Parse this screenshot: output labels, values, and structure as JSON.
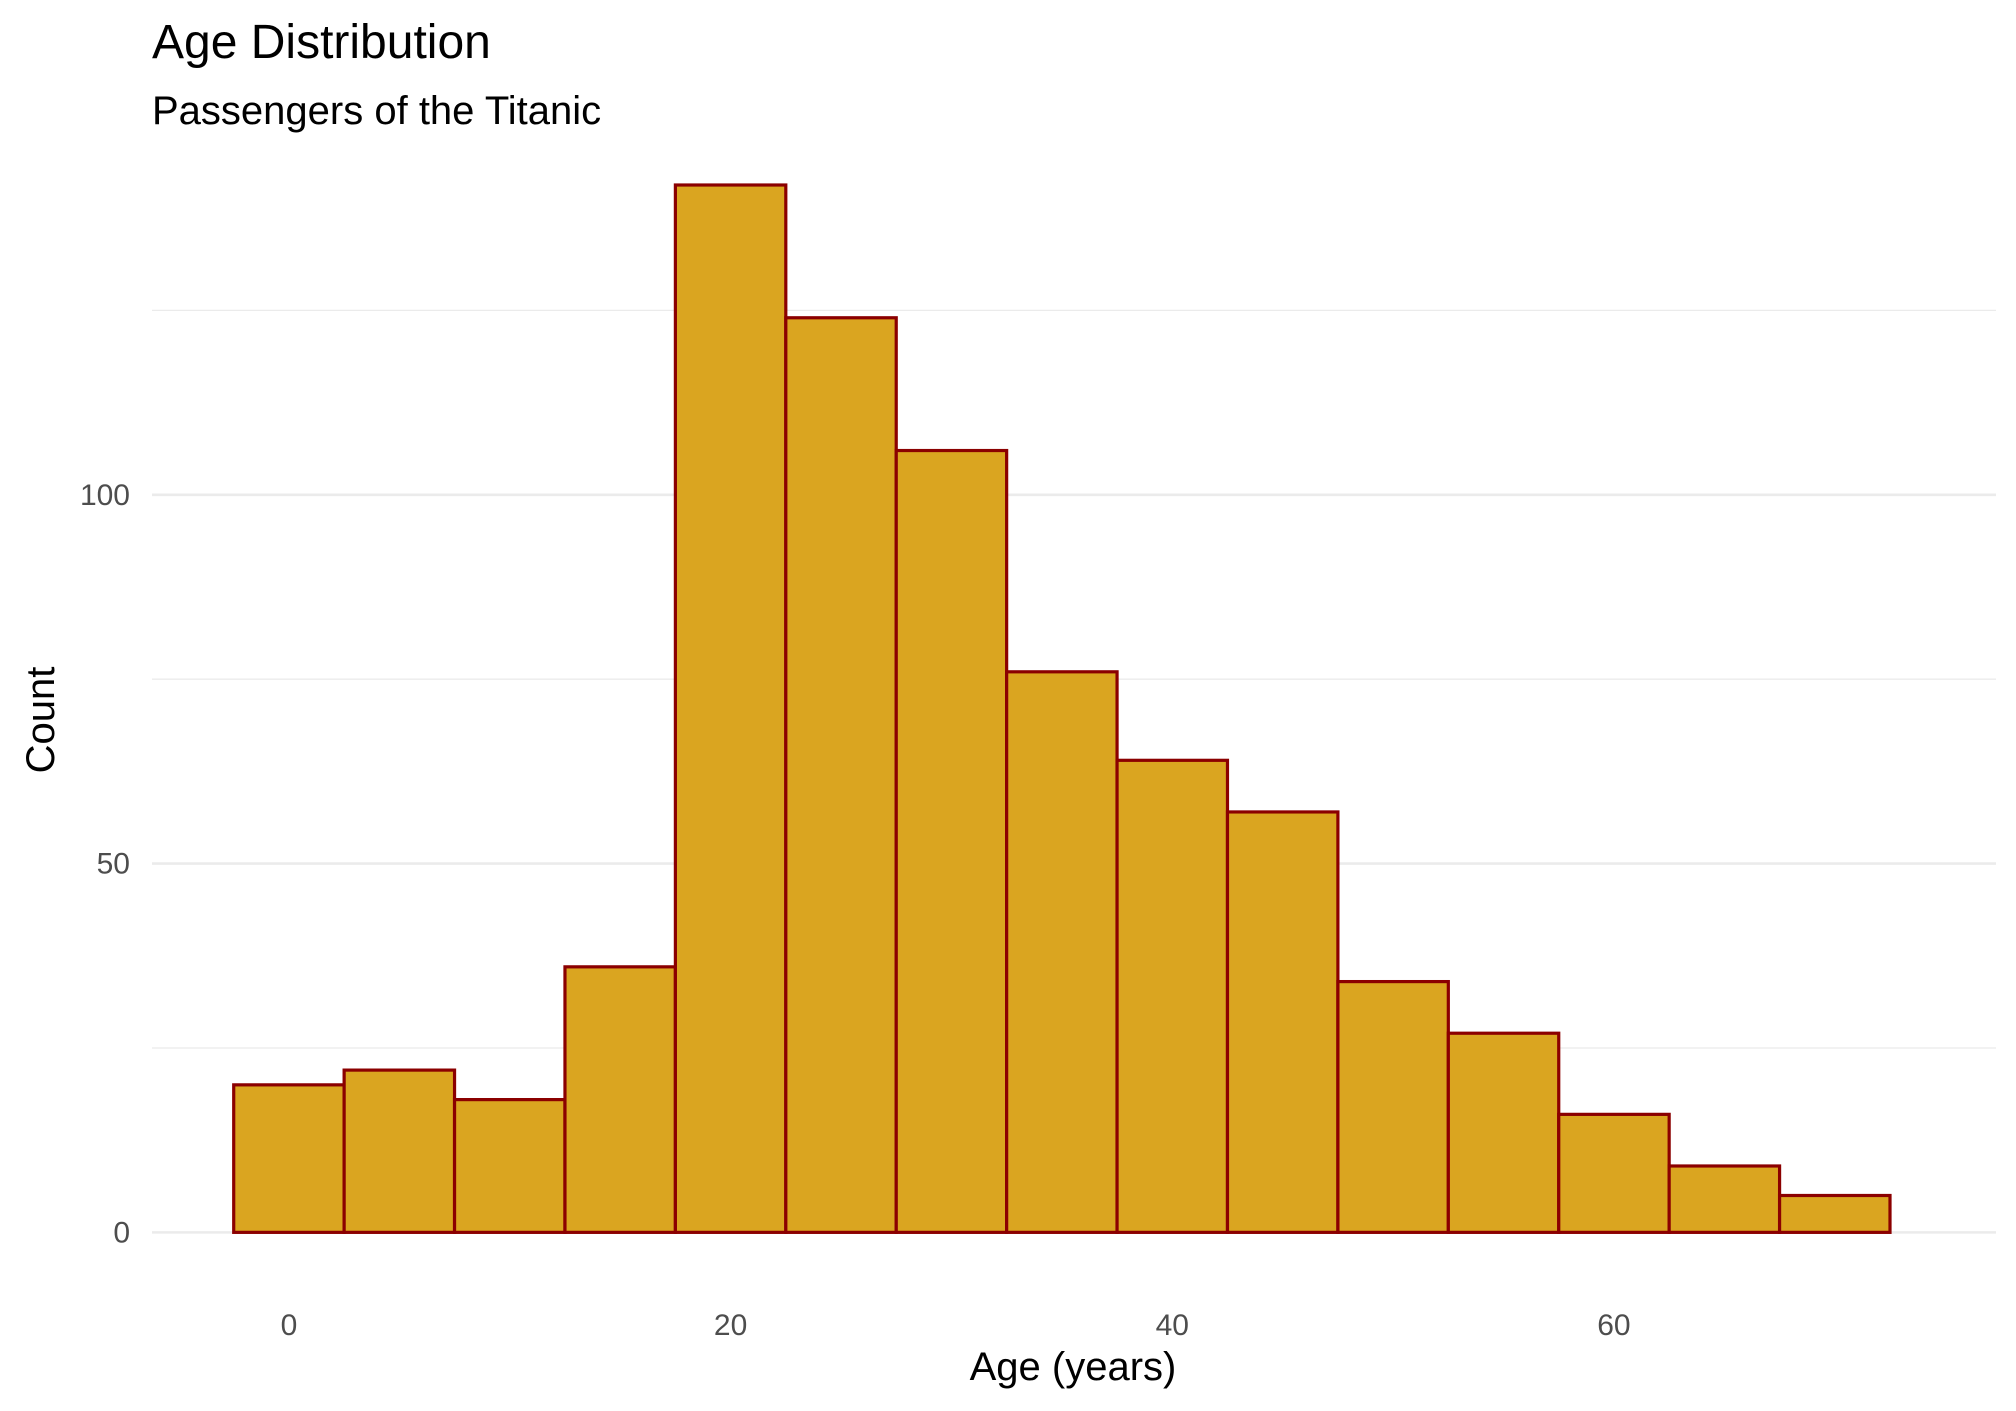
{
  "chart_data": {
    "type": "bar",
    "subtype": "histogram",
    "title": "Age Distribution",
    "subtitle": "Passengers of the Titanic",
    "xlabel": "Age (years)",
    "ylabel": "Count",
    "bin_width": 5,
    "bins": [
      {
        "start": -2.5,
        "end": 2.5,
        "count": 20
      },
      {
        "start": 2.5,
        "end": 7.5,
        "count": 22
      },
      {
        "start": 7.5,
        "end": 12.5,
        "count": 18
      },
      {
        "start": 12.5,
        "end": 17.5,
        "count": 36
      },
      {
        "start": 17.5,
        "end": 22.5,
        "count": 142
      },
      {
        "start": 22.5,
        "end": 27.5,
        "count": 124
      },
      {
        "start": 27.5,
        "end": 32.5,
        "count": 106
      },
      {
        "start": 32.5,
        "end": 37.5,
        "count": 76
      },
      {
        "start": 37.5,
        "end": 42.5,
        "count": 64
      },
      {
        "start": 42.5,
        "end": 47.5,
        "count": 57
      },
      {
        "start": 47.5,
        "end": 52.5,
        "count": 34
      },
      {
        "start": 52.5,
        "end": 57.5,
        "count": 27
      },
      {
        "start": 57.5,
        "end": 62.5,
        "count": 16
      },
      {
        "start": 62.5,
        "end": 67.5,
        "count": 9
      },
      {
        "start": 67.5,
        "end": 72.5,
        "count": 5
      }
    ],
    "xlim": [
      -6.2,
      77.3
    ],
    "ylim": [
      -7,
      142
    ],
    "x_ticks": [
      0,
      20,
      40,
      60
    ],
    "y_ticks": [
      0,
      50,
      100
    ],
    "y_minor_ticks": [
      25,
      75,
      125
    ],
    "grid": true,
    "bar_fill": "#DAA520",
    "bar_outline": "#8B0000",
    "legend": "none"
  }
}
